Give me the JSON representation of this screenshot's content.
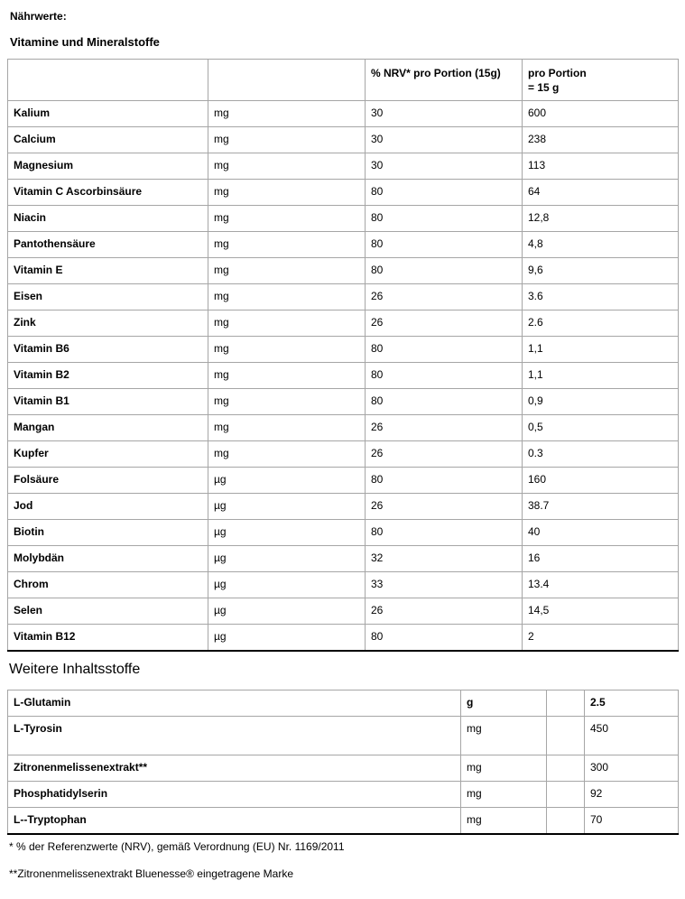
{
  "page": {
    "title": "Nährwerte:",
    "vitamins_heading": "Vitamine und Mineralstoffe",
    "other_heading": "Weitere Inhaltsstoffe",
    "footnotes": [
      "* % der Referenzwerte (NRV), gemäß Verordnung (EU) Nr. 1169/2011",
      "**Zitronenmelissenextrakt Bluenesse® eingetragene Marke"
    ]
  },
  "vitamins_table": {
    "header": {
      "nutrient": "",
      "unit": "",
      "nrv": "% NRV* pro Portion (15g)",
      "portion_line1": "pro Portion",
      "portion_line2": "= 15 g"
    },
    "rows": [
      [
        "Kalium",
        "mg",
        "30",
        "600"
      ],
      [
        "Calcium",
        "mg",
        "30",
        "238"
      ],
      [
        "Magnesium",
        "mg",
        "30",
        "113"
      ],
      [
        "Vitamin C Ascorbinsäure",
        "mg",
        "80",
        "64"
      ],
      [
        "Niacin",
        "mg",
        "80",
        "12,8"
      ],
      [
        "Pantothensäure",
        "mg",
        "80",
        "4,8"
      ],
      [
        "Vitamin E",
        "mg",
        "80",
        "9,6"
      ],
      [
        "Eisen",
        "mg",
        "26",
        "3.6"
      ],
      [
        "Zink",
        "mg",
        "26",
        "2.6"
      ],
      [
        "Vitamin B6",
        "mg",
        "80",
        "1,1"
      ],
      [
        "Vitamin B2",
        "mg",
        "80",
        "1,1"
      ],
      [
        "Vitamin B1",
        "mg",
        "80",
        "0,9"
      ],
      [
        "Mangan",
        "mg",
        "26",
        "0,5"
      ],
      [
        "Kupfer",
        "mg",
        "26",
        "0.3"
      ],
      [
        "Folsäure",
        "µg",
        "80",
        "160"
      ],
      [
        "Jod",
        "µg",
        "26",
        "38.7"
      ],
      [
        "Biotin",
        "µg",
        "80",
        "40"
      ],
      [
        "Molybdän",
        "µg",
        "32",
        "16"
      ],
      [
        "Chrom",
        "µg",
        "33",
        "13.4"
      ],
      [
        "Selen",
        "µg",
        "26",
        "14,5"
      ],
      [
        "Vitamin B12",
        "µg",
        "80",
        "2"
      ]
    ]
  },
  "other_table": {
    "rows": [
      {
        "name": "L-Glutamin",
        "unit": "g",
        "value": "2.5"
      },
      {
        "name": "L-Tyrosin",
        "unit": "mg",
        "value": "450"
      },
      {
        "name": "Zitronenmelissenextrakt**",
        "unit": "mg",
        "value": "300"
      },
      {
        "name": "Phosphatidylserin",
        "unit": "mg",
        "value": "92"
      },
      {
        "name": "L--Tryptophan",
        "unit": "mg",
        "value": "70"
      }
    ]
  }
}
